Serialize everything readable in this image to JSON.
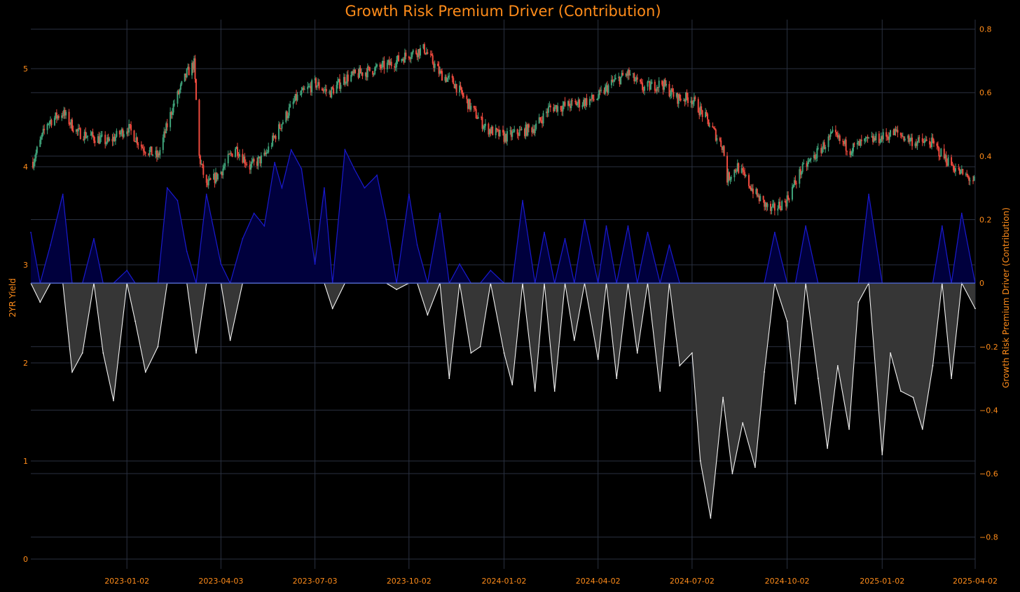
{
  "chart_data": {
    "type": "candlestick+area",
    "title": "Growth Risk Premium Driver (Contribution)",
    "left_axis": {
      "label": "2YR Yield",
      "range": [
        -0.1,
        5.5
      ],
      "ticks": [
        0,
        1,
        2,
        3,
        4,
        5
      ]
    },
    "right_axis": {
      "label": "Growth Risk Premium Driver (Contribution)",
      "range": [
        -0.9,
        0.83
      ],
      "ticks": [
        0.8,
        0.6,
        0.4,
        0.2,
        0,
        -0.2,
        -0.4,
        -0.6,
        -0.8
      ],
      "tick_labels": [
        "0.8",
        "0.6",
        "0.4",
        "0.2",
        "0",
        "−0.2",
        "−0.4",
        "−0.6",
        "−0.8"
      ]
    },
    "x_axis": {
      "range": [
        "2022-10-01",
        "2025-04-02"
      ],
      "ticks": [
        "2023-01-02",
        "2023-04-03",
        "2023-07-03",
        "2023-10-02",
        "2024-01-02",
        "2024-04-02",
        "2024-07-02",
        "2024-10-02",
        "2025-01-02",
        "2025-04-02"
      ]
    },
    "grid": true,
    "colors": {
      "background": "#000000",
      "text": "#ff8c1a",
      "grid": "#2a3140",
      "candle_up": "#3fa37a",
      "candle_down": "#ee4a3e",
      "positive_fill": "#00003d",
      "positive_line": "#1a1ad0",
      "negative_fill": "#363636",
      "negative_line": "#f2f2f2",
      "zero_line": "#4a5fc1"
    },
    "yield_series": {
      "name": "2YR Yield",
      "dates": [
        "2022-10-03",
        "2022-10-17",
        "2022-11-01",
        "2022-11-15",
        "2022-12-01",
        "2022-12-15",
        "2023-01-03",
        "2023-01-17",
        "2023-02-01",
        "2023-02-15",
        "2023-03-01",
        "2023-03-08",
        "2023-03-13",
        "2023-03-20",
        "2023-04-03",
        "2023-04-17",
        "2023-05-01",
        "2023-05-15",
        "2023-06-01",
        "2023-06-15",
        "2023-07-03",
        "2023-07-17",
        "2023-08-01",
        "2023-08-15",
        "2023-09-01",
        "2023-09-15",
        "2023-10-02",
        "2023-10-17",
        "2023-11-01",
        "2023-11-15",
        "2023-12-01",
        "2023-12-15",
        "2024-01-02",
        "2024-01-16",
        "2024-02-01",
        "2024-02-15",
        "2024-03-01",
        "2024-03-15",
        "2024-04-01",
        "2024-04-15",
        "2024-05-01",
        "2024-05-15",
        "2024-06-03",
        "2024-06-17",
        "2024-07-01",
        "2024-07-15",
        "2024-08-01",
        "2024-08-05",
        "2024-08-15",
        "2024-09-03",
        "2024-09-16",
        "2024-10-01",
        "2024-10-15",
        "2024-11-01",
        "2024-11-15",
        "2024-12-02",
        "2024-12-16",
        "2025-01-02",
        "2025-01-15",
        "2025-02-03",
        "2025-02-18",
        "2025-03-03",
        "2025-03-17",
        "2025-04-01"
      ],
      "values": [
        4.05,
        4.45,
        4.55,
        4.35,
        4.3,
        4.25,
        4.4,
        4.2,
        4.1,
        4.6,
        4.95,
        5.05,
        4.1,
        3.8,
        3.95,
        4.2,
        4.0,
        4.1,
        4.45,
        4.7,
        4.85,
        4.75,
        4.9,
        4.95,
        5.0,
        5.05,
        5.15,
        5.2,
        4.95,
        4.85,
        4.6,
        4.4,
        4.3,
        4.35,
        4.4,
        4.6,
        4.62,
        4.65,
        4.7,
        4.85,
        4.95,
        4.8,
        4.85,
        4.7,
        4.7,
        4.5,
        4.2,
        3.88,
        4.0,
        3.7,
        3.55,
        3.65,
        3.95,
        4.15,
        4.32,
        4.18,
        4.25,
        4.3,
        4.35,
        4.25,
        4.25,
        4.1,
        3.95,
        3.85
      ]
    },
    "contribution_series": {
      "name": "Growth Risk Premium Driver (Contribution)",
      "dates": [
        "2022-10-01",
        "2022-10-10",
        "2022-10-20",
        "2022-11-01",
        "2022-11-10",
        "2022-11-20",
        "2022-12-01",
        "2022-12-10",
        "2022-12-20",
        "2023-01-02",
        "2023-01-10",
        "2023-01-20",
        "2023-02-01",
        "2023-02-10",
        "2023-02-20",
        "2023-03-01",
        "2023-03-10",
        "2023-03-20",
        "2023-04-03",
        "2023-04-12",
        "2023-04-24",
        "2023-05-05",
        "2023-05-15",
        "2023-05-25",
        "2023-06-01",
        "2023-06-10",
        "2023-06-20",
        "2023-07-03",
        "2023-07-12",
        "2023-07-20",
        "2023-08-01",
        "2023-08-10",
        "2023-08-20",
        "2023-09-01",
        "2023-09-10",
        "2023-09-20",
        "2023-10-02",
        "2023-10-10",
        "2023-10-20",
        "2023-11-01",
        "2023-11-10",
        "2023-11-20",
        "2023-12-01",
        "2023-12-10",
        "2023-12-20",
        "2024-01-02",
        "2024-01-10",
        "2024-01-20",
        "2024-02-01",
        "2024-02-10",
        "2024-02-20",
        "2024-03-01",
        "2024-03-10",
        "2024-03-20",
        "2024-04-02",
        "2024-04-10",
        "2024-04-20",
        "2024-05-01",
        "2024-05-10",
        "2024-05-20",
        "2024-06-01",
        "2024-06-10",
        "2024-06-20",
        "2024-07-02",
        "2024-07-10",
        "2024-07-20",
        "2024-08-01",
        "2024-08-10",
        "2024-08-20",
        "2024-09-01",
        "2024-09-10",
        "2024-09-20",
        "2024-10-02",
        "2024-10-10",
        "2024-10-20",
        "2024-11-01",
        "2024-11-10",
        "2024-11-20",
        "2024-12-01",
        "2024-12-10",
        "2024-12-20",
        "2025-01-02",
        "2025-01-10",
        "2025-01-20",
        "2025-02-01",
        "2025-02-10",
        "2025-02-20",
        "2025-03-01",
        "2025-03-10",
        "2025-03-20",
        "2025-04-02"
      ],
      "values": [
        0.16,
        -0.06,
        0.12,
        0.28,
        -0.28,
        -0.22,
        0.14,
        -0.22,
        -0.37,
        0.04,
        -0.12,
        -0.28,
        -0.2,
        0.3,
        0.26,
        0.1,
        -0.22,
        0.28,
        0.06,
        -0.18,
        0.14,
        0.22,
        0.18,
        0.38,
        0.3,
        0.42,
        0.36,
        0.06,
        0.3,
        -0.08,
        0.42,
        0.36,
        0.3,
        0.34,
        0.2,
        -0.02,
        0.28,
        0.12,
        -0.1,
        0.22,
        -0.3,
        0.06,
        -0.22,
        -0.2,
        0.04,
        -0.22,
        -0.32,
        0.26,
        -0.34,
        0.16,
        -0.34,
        0.14,
        -0.18,
        0.2,
        -0.24,
        0.18,
        -0.3,
        0.18,
        -0.22,
        0.16,
        -0.34,
        0.12,
        -0.26,
        -0.22,
        -0.56,
        -0.74,
        -0.36,
        -0.6,
        -0.44,
        -0.58,
        -0.28,
        0.16,
        -0.12,
        -0.38,
        0.18,
        -0.3,
        -0.52,
        -0.26,
        -0.46,
        -0.06,
        0.28,
        -0.54,
        -0.22,
        -0.34,
        -0.36,
        -0.46,
        -0.26,
        0.18,
        -0.3,
        0.22,
        -0.08
      ]
    }
  }
}
